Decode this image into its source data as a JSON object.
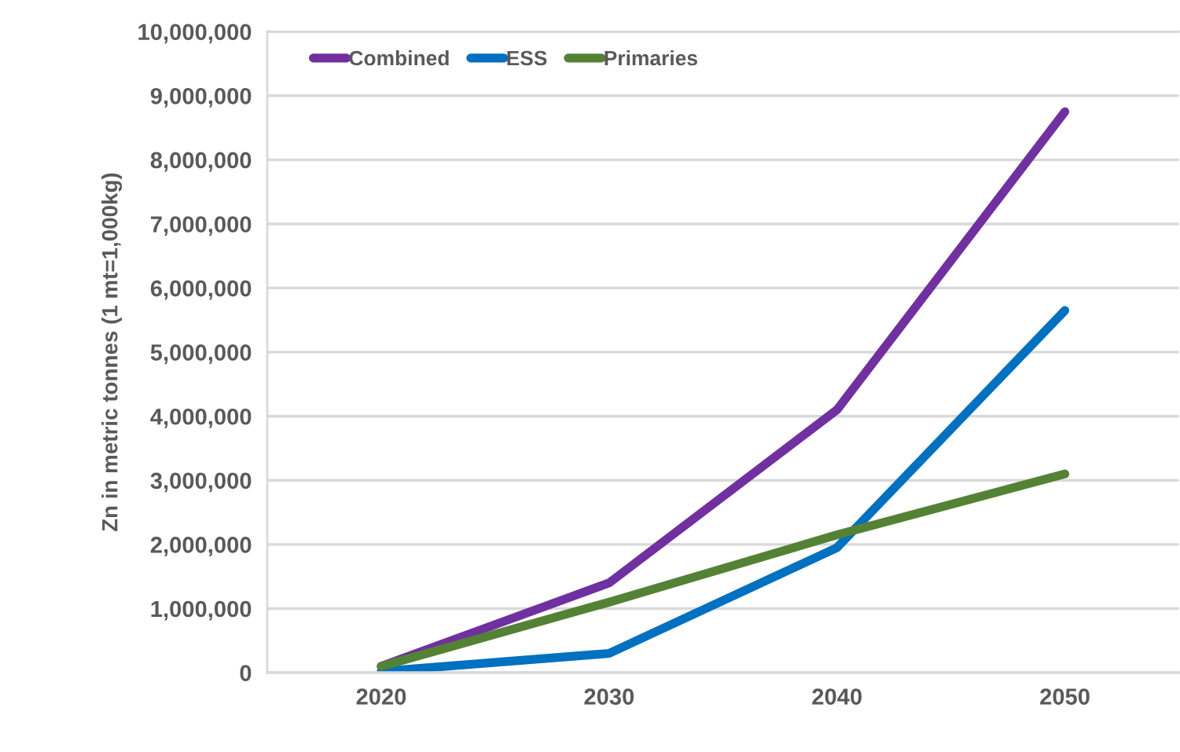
{
  "chart_data": {
    "type": "line",
    "ylabel": "Zn in metric tonnes (1 mt=1,000kg)",
    "categories": [
      "2020",
      "2030",
      "2040",
      "2050"
    ],
    "series": [
      {
        "name": "Combined",
        "color": "#7030a0",
        "values": [
          100000,
          1400000,
          4100000,
          8750000
        ]
      },
      {
        "name": "ESS",
        "color": "#0070c0",
        "values": [
          20000,
          300000,
          1950000,
          5650000
        ]
      },
      {
        "name": "Primaries",
        "color": "#548235",
        "values": [
          100000,
          1100000,
          2150000,
          3100000
        ]
      }
    ],
    "ylim": [
      0,
      10000000
    ],
    "yticks": [
      {
        "value": 0,
        "label": "0"
      },
      {
        "value": 1000000,
        "label": "1,000,000"
      },
      {
        "value": 2000000,
        "label": "2,000,000"
      },
      {
        "value": 3000000,
        "label": "3,000,000"
      },
      {
        "value": 4000000,
        "label": "4,000,000"
      },
      {
        "value": 5000000,
        "label": "5,000,000"
      },
      {
        "value": 6000000,
        "label": "6,000,000"
      },
      {
        "value": 7000000,
        "label": "7,000,000"
      },
      {
        "value": 8000000,
        "label": "8,000,000"
      },
      {
        "value": 9000000,
        "label": "9,000,000"
      },
      {
        "value": 10000000,
        "label": "10,000,000"
      }
    ],
    "grid": "y",
    "legend": "top left",
    "marker": "none",
    "line_style": "solid"
  }
}
